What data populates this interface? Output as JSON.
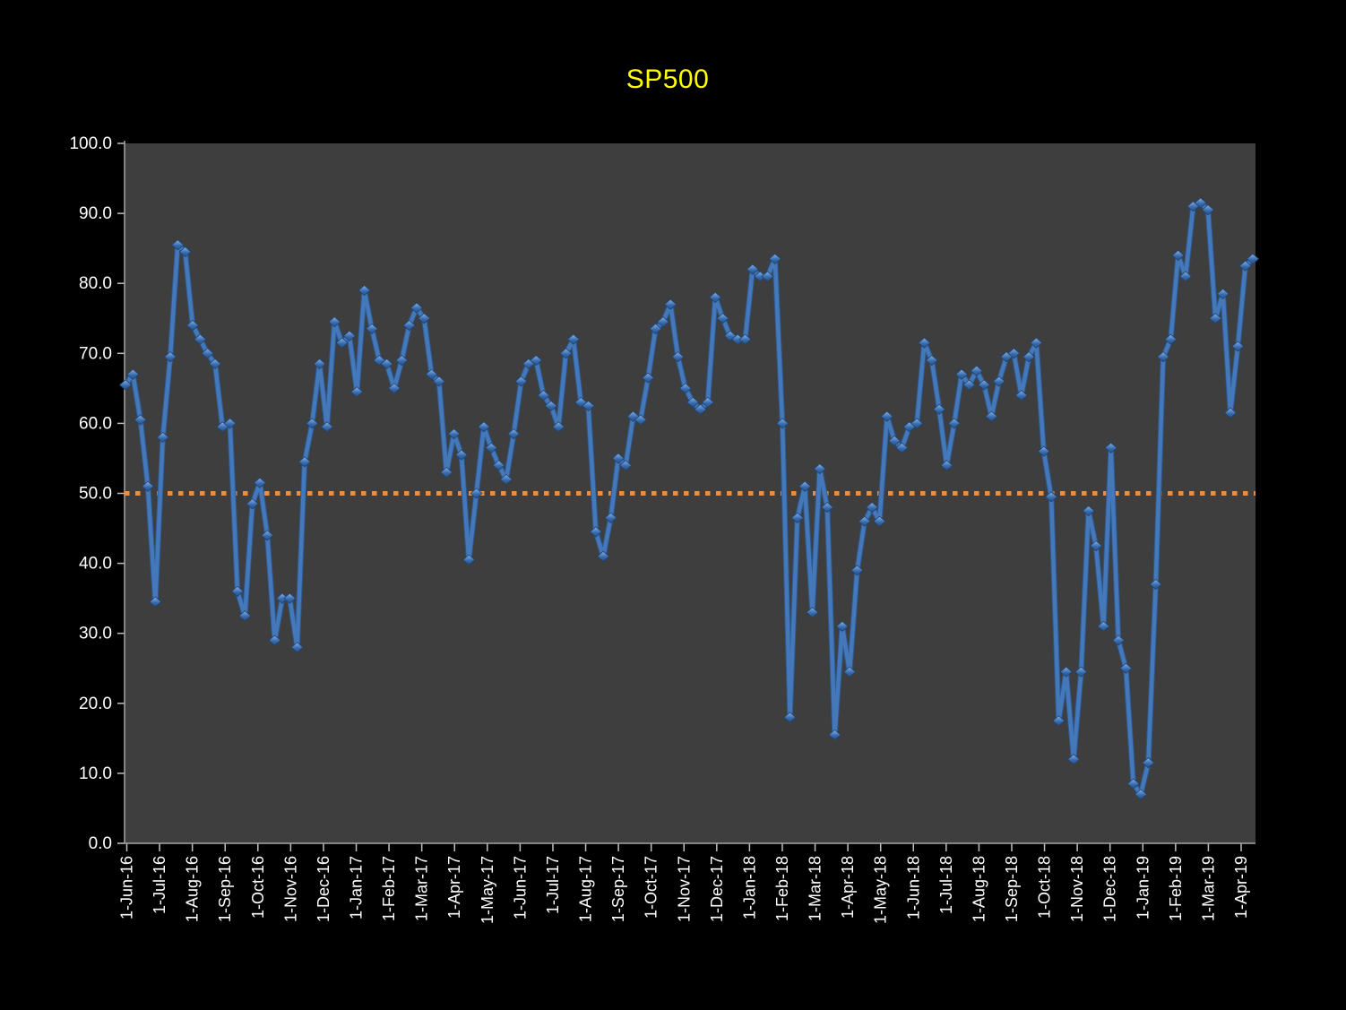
{
  "title": "SP500",
  "colors": {
    "background": "#000000",
    "plot_background": "#3E3E3E",
    "axis_line": "#A6A6A6",
    "tick_mark": "#BFBFBF",
    "tick_label": "#FFFFFF",
    "title_color": "#FFFF00",
    "series_line": "#4478B9",
    "series_line_dark": "#2C5890",
    "marker_light": "#8AB0DE",
    "marker_mid": "#4A7CBC",
    "marker_dark": "#245089",
    "marker_edge": "#1E4474",
    "reference_line": "#ED8D3D"
  },
  "chart_data": {
    "type": "line",
    "title": "SP500",
    "xlabel": "",
    "ylabel": "",
    "ylim": [
      0,
      100
    ],
    "grid": false,
    "legend": "none",
    "plot_bg": "#3E3E3E",
    "y_tick_labels": [
      "0.0",
      "10.0",
      "20.0",
      "30.0",
      "40.0",
      "50.0",
      "60.0",
      "70.0",
      "80.0",
      "90.0",
      "100.0"
    ],
    "x_tick_labels": [
      "1-Jun-16",
      "1-Jul-16",
      "1-Aug-16",
      "1-Sep-16",
      "1-Oct-16",
      "1-Nov-16",
      "1-Dec-16",
      "1-Jan-17",
      "1-Feb-17",
      "1-Mar-17",
      "1-Apr-17",
      "1-May-17",
      "1-Jun-17",
      "1-Jul-17",
      "1-Aug-17",
      "1-Sep-17",
      "1-Oct-17",
      "1-Nov-17",
      "1-Dec-17",
      "1-Jan-18",
      "1-Feb-18",
      "1-Mar-18",
      "1-Apr-18",
      "1-May-18",
      "1-Jun-18",
      "1-Jul-18",
      "1-Aug-18",
      "1-Sep-18",
      "1-Oct-18",
      "1-Nov-18",
      "1-Dec-18",
      "1-Jan-19",
      "1-Feb-19",
      "1-Mar-19",
      "1-Apr-19"
    ],
    "reference_line": {
      "value": 50.0,
      "style": "dotted"
    },
    "series": [
      {
        "name": "SP500",
        "frequency": "weekly",
        "values": [
          65.5,
          67,
          60.5,
          51,
          34.5,
          58,
          69.5,
          85.5,
          84.5,
          74,
          72,
          70,
          68.5,
          59.5,
          60,
          36,
          32.5,
          48.5,
          51.5,
          44,
          29,
          35,
          35,
          28,
          54.5,
          60,
          68.5,
          59.5,
          74.5,
          71.5,
          72.5,
          64.5,
          79,
          73.5,
          69,
          68.5,
          65,
          69,
          74,
          76.5,
          75,
          67,
          66,
          53,
          58.5,
          55.5,
          40.5,
          50,
          59.5,
          56.5,
          54,
          52,
          58.5,
          66,
          68.5,
          69,
          64,
          62.5,
          59.5,
          70,
          72,
          63,
          62.5,
          44.5,
          41,
          46.5,
          55,
          54,
          61,
          60.5,
          66.5,
          73.5,
          74.5,
          77,
          69.5,
          65,
          63,
          62,
          63,
          78,
          75,
          72.5,
          72,
          72,
          82,
          81,
          81,
          83.5,
          60,
          18,
          46.5,
          51,
          33,
          53.5,
          48,
          15.5,
          31,
          24.5,
          39,
          46,
          48,
          46,
          61,
          57.5,
          56.5,
          59.5,
          60,
          71.5,
          69,
          62,
          54,
          60,
          67,
          65.5,
          67.5,
          65.5,
          61,
          66,
          69.5,
          70,
          64,
          69.5,
          71.5,
          56,
          49.5,
          17.5,
          24.5,
          12,
          24.5,
          47.5,
          42.5,
          31,
          56.5,
          29,
          25,
          8.5,
          7,
          11.5,
          37,
          69.5,
          72,
          84,
          81,
          91,
          91.5,
          90.5,
          75,
          78.5,
          61.5,
          71,
          82.5,
          83.5
        ]
      }
    ]
  }
}
